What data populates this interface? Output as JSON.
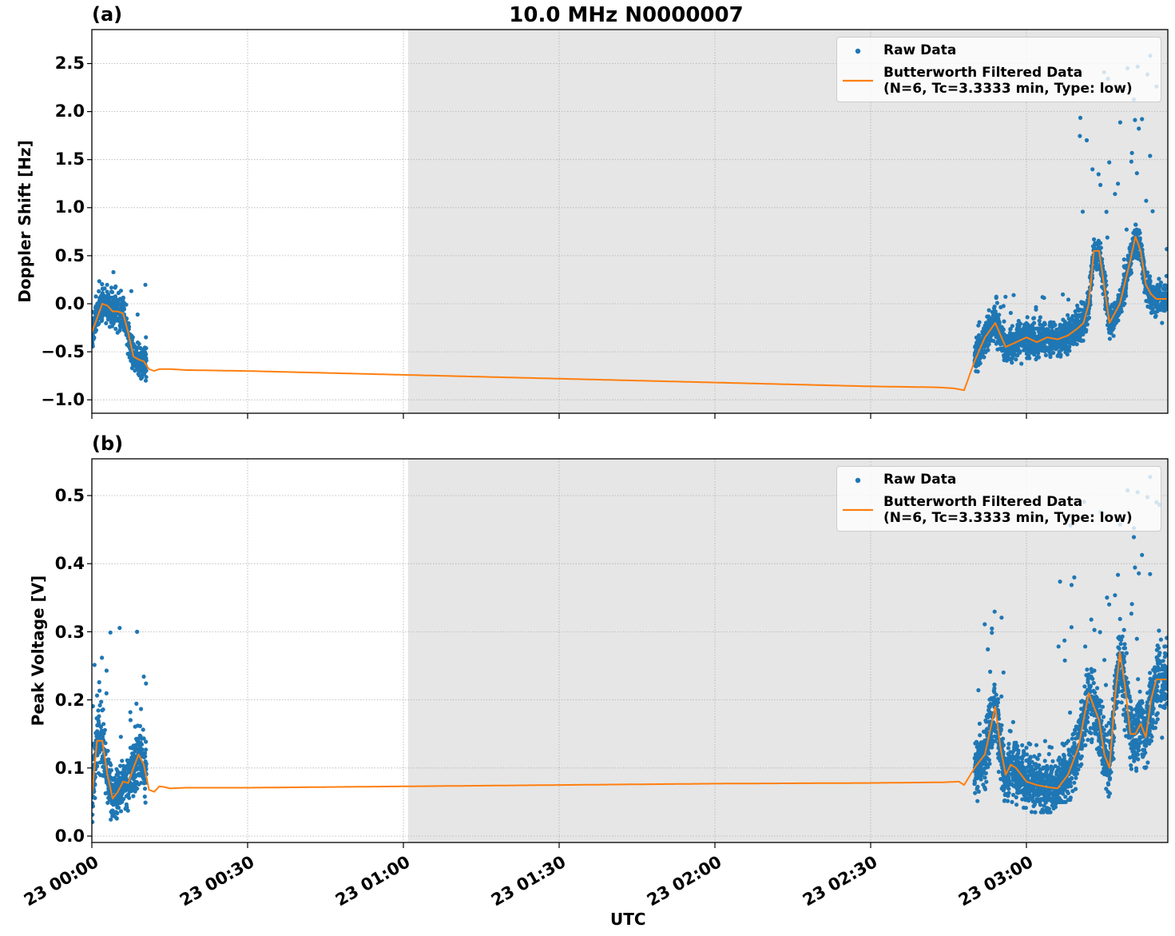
{
  "figure": {
    "title": "10.0 MHz N0000007",
    "xlabel": "UTC",
    "x_ticks": [
      "23 00:00",
      "23 00:30",
      "23 01:00",
      "23 01:30",
      "23 02:00",
      "23 02:30",
      "23 03:00"
    ]
  },
  "panels": [
    {
      "label": "(a)",
      "ylabel": "Doppler Shift [Hz]",
      "y_ticks": [
        "2.5",
        "2.0",
        "1.5",
        "1.0",
        "0.5",
        "0.0",
        "−0.5",
        "−1.0"
      ],
      "legend": {
        "raw": "Raw Data",
        "filtered_line1": "Butterworth Filtered Data",
        "filtered_line2": "(N=6, Tc=3.3333 min, Type: low)"
      }
    },
    {
      "label": "(b)",
      "ylabel": "Peak Voltage [V]",
      "y_ticks": [
        "0.5",
        "0.4",
        "0.3",
        "0.2",
        "0.1",
        "0.0"
      ],
      "legend": {
        "raw": "Raw Data",
        "filtered_line1": "Butterworth Filtered Data",
        "filtered_line2": "(N=6, Tc=3.3333 min, Type: low)"
      }
    }
  ],
  "colors": {
    "raw": "#1f77b4",
    "filtered": "#ff7f0e",
    "shade": "#e6e6e6",
    "grid": "#b0b0b0"
  },
  "chart_data": [
    {
      "type": "scatter",
      "title": "10.0 MHz N0000007",
      "panel": "(a)",
      "xlabel": "UTC",
      "ylabel": "Doppler Shift [Hz]",
      "x_unit": "minutes after 23 00:00 UTC",
      "xlim": [
        0,
        207.2
      ],
      "ylim": [
        -1.14,
        2.85
      ],
      "grid": true,
      "legend_position": "upper right",
      "shaded_region_x": [
        60.9,
        207.2
      ],
      "series": [
        {
          "name": "Raw Data",
          "kind": "scatter",
          "segments": [
            {
              "x_range": [
                0,
                10.5
              ],
              "y_center": -0.1,
              "y_spread": [
                -0.8,
                0.35
              ]
            },
            {
              "x_range": [
                170,
                180
              ],
              "y_center": -0.35,
              "y_spread": [
                -0.9,
                0.15
              ]
            },
            {
              "x_range": [
                180,
                190
              ],
              "y_center": -0.35,
              "y_spread": [
                -0.95,
                0.1
              ]
            },
            {
              "x_range": [
                190,
                196
              ],
              "y_center": -0.1,
              "y_spread": [
                -0.6,
                2.65
              ]
            },
            {
              "x_range": [
                196,
                207.2
              ],
              "y_center": 0.05,
              "y_spread": [
                -0.4,
                2.6
              ]
            }
          ]
        },
        {
          "name": "Butterworth Filtered Data (N=6, Tc=3.3333 min, Type: low)",
          "kind": "line",
          "x": [
            0,
            1,
            2,
            3,
            4,
            5,
            6,
            7,
            8,
            9,
            10,
            11,
            12,
            13,
            14,
            15,
            18,
            30,
            60,
            90,
            120,
            150,
            163,
            166,
            168,
            170,
            172,
            174,
            176,
            178,
            180,
            182,
            184,
            186,
            188,
            190,
            191,
            192,
            193,
            194,
            196,
            198,
            200,
            201,
            202,
            203,
            204,
            205,
            206,
            207.2
          ],
          "y": [
            -0.3,
            -0.15,
            0.0,
            -0.02,
            -0.08,
            -0.08,
            -0.1,
            -0.3,
            -0.55,
            -0.58,
            -0.6,
            -0.68,
            -0.7,
            -0.68,
            -0.68,
            -0.68,
            -0.69,
            -0.7,
            -0.74,
            -0.78,
            -0.82,
            -0.86,
            -0.87,
            -0.88,
            -0.9,
            -0.6,
            -0.35,
            -0.2,
            -0.45,
            -0.4,
            -0.35,
            -0.4,
            -0.35,
            -0.37,
            -0.33,
            -0.25,
            -0.2,
            0.0,
            0.55,
            0.55,
            -0.2,
            0.0,
            0.45,
            0.7,
            0.55,
            0.2,
            0.1,
            0.05,
            0.05,
            0.05
          ]
        }
      ]
    },
    {
      "type": "scatter",
      "panel": "(b)",
      "xlabel": "UTC",
      "ylabel": "Peak Voltage [V]",
      "x_unit": "minutes after 23 00:00 UTC",
      "xlim": [
        0,
        207.2
      ],
      "ylim": [
        -0.009,
        0.554
      ],
      "grid": true,
      "legend_position": "upper right",
      "shaded_region_x": [
        60.9,
        207.2
      ],
      "series": [
        {
          "name": "Raw Data",
          "kind": "scatter",
          "segments": [
            {
              "x_range": [
                0,
                10.5
              ],
              "y_center": 0.08,
              "y_spread": [
                0.015,
                0.32
              ]
            },
            {
              "x_range": [
                170,
                178
              ],
              "y_center": 0.12,
              "y_spread": [
                0.05,
                0.34
              ]
            },
            {
              "x_range": [
                178,
                186
              ],
              "y_center": 0.07,
              "y_spread": [
                0.035,
                0.14
              ]
            },
            {
              "x_range": [
                186,
                196
              ],
              "y_center": 0.15,
              "y_spread": [
                0.05,
                0.51
              ]
            },
            {
              "x_range": [
                196,
                207.2
              ],
              "y_center": 0.17,
              "y_spread": [
                0.06,
                0.53
              ]
            }
          ]
        },
        {
          "name": "Butterworth Filtered Data (N=6, Tc=3.3333 min, Type: low)",
          "kind": "line",
          "x": [
            0,
            1,
            2,
            3,
            4,
            5,
            6,
            7,
            8,
            9,
            10,
            11,
            12,
            13,
            14,
            15,
            18,
            30,
            60,
            90,
            120,
            150,
            164,
            167,
            168,
            170,
            172,
            174,
            175,
            176,
            177,
            178,
            180,
            182,
            184,
            186,
            188,
            190,
            192,
            194,
            195,
            196,
            197,
            198,
            199,
            200,
            201,
            202,
            203,
            204,
            205,
            206,
            207.2
          ],
          "y": [
            0.06,
            0.14,
            0.14,
            0.09,
            0.055,
            0.065,
            0.08,
            0.078,
            0.1,
            0.12,
            0.105,
            0.068,
            0.065,
            0.073,
            0.072,
            0.07,
            0.071,
            0.071,
            0.073,
            0.075,
            0.077,
            0.078,
            0.079,
            0.08,
            0.075,
            0.1,
            0.12,
            0.19,
            0.13,
            0.09,
            0.105,
            0.1,
            0.08,
            0.075,
            0.072,
            0.07,
            0.09,
            0.13,
            0.21,
            0.17,
            0.12,
            0.1,
            0.2,
            0.27,
            0.22,
            0.15,
            0.15,
            0.165,
            0.145,
            0.2,
            0.23,
            0.23,
            0.23
          ]
        }
      ]
    }
  ]
}
